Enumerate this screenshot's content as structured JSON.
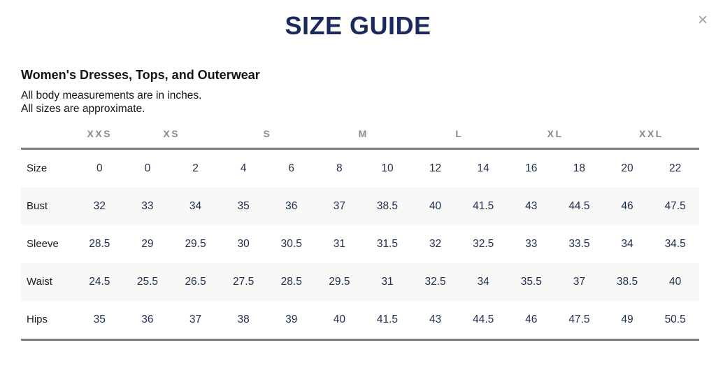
{
  "modal": {
    "title": "SIZE GUIDE",
    "close_glyph": "×"
  },
  "section": {
    "heading": "Women's Dresses, Tops, and Outerwear",
    "note_line1": "All body measurements are in inches.",
    "note_line2": "All sizes are approximate."
  },
  "colors": {
    "title_navy": "#1a2a5c",
    "value_navy": "#1e2e4f",
    "group_header_gray": "#8a8a8a",
    "rule_gray": "#7c7c7c",
    "stripe_bg": "#f8f8f6",
    "close_gray": "#9e9e9e"
  },
  "chart_data": {
    "type": "table",
    "title": "Women's Dresses, Tops, and Outerwear size chart",
    "size_groups": [
      {
        "label": "XXS",
        "colspan": 1
      },
      {
        "label": "XS",
        "colspan": 2
      },
      {
        "label": "S",
        "colspan": 2
      },
      {
        "label": "M",
        "colspan": 2
      },
      {
        "label": "L",
        "colspan": 2
      },
      {
        "label": "XL",
        "colspan": 2
      },
      {
        "label": "XXL",
        "colspan": 2
      }
    ],
    "rows": [
      {
        "label": "Size",
        "values": [
          "0",
          "0",
          "2",
          "4",
          "6",
          "8",
          "10",
          "12",
          "14",
          "16",
          "18",
          "20",
          "22"
        ]
      },
      {
        "label": "Bust",
        "values": [
          "32",
          "33",
          "34",
          "35",
          "36",
          "37",
          "38.5",
          "40",
          "41.5",
          "43",
          "44.5",
          "46",
          "47.5"
        ]
      },
      {
        "label": "Sleeve",
        "values": [
          "28.5",
          "29",
          "29.5",
          "30",
          "30.5",
          "31",
          "31.5",
          "32",
          "32.5",
          "33",
          "33.5",
          "34",
          "34.5"
        ]
      },
      {
        "label": "Waist",
        "values": [
          "24.5",
          "25.5",
          "26.5",
          "27.5",
          "28.5",
          "29.5",
          "31",
          "32.5",
          "34",
          "35.5",
          "37",
          "38.5",
          "40"
        ]
      },
      {
        "label": "Hips",
        "values": [
          "35",
          "36",
          "37",
          "38",
          "39",
          "40",
          "41.5",
          "43",
          "44.5",
          "46",
          "47.5",
          "49",
          "50.5"
        ]
      }
    ]
  }
}
